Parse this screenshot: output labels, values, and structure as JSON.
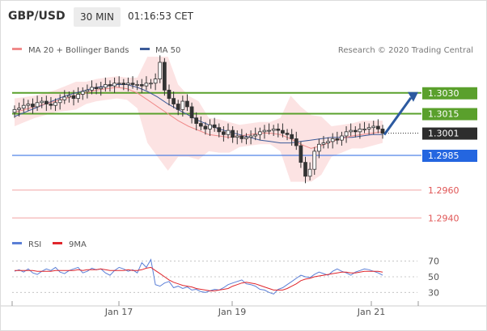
{
  "header": {
    "pair": "GBP/USD",
    "timeframe": "30 MIN",
    "time": "01:16:53 CET"
  },
  "legend_main": [
    {
      "label": "MA 20 + Bollinger Bands",
      "color": "#f08a8a"
    },
    {
      "label": "MA 50",
      "color": "#3b5a99"
    }
  ],
  "credit": "Research © 2020 Trading Central",
  "legend_osc": [
    {
      "label": "RSI",
      "color": "#5b7fd6"
    },
    {
      "label": "9MA",
      "color": "#e0262c"
    }
  ],
  "chart_data": [
    {
      "type": "candlestick",
      "x_labels": [
        "Jan 17",
        "Jan 19",
        "Jan 21"
      ],
      "ylim": [
        1.2932,
        1.3052
      ],
      "levels": [
        {
          "value": 1.303,
          "label": "1.3030",
          "color": "#5aa02c",
          "kind": "resistance"
        },
        {
          "value": 1.3015,
          "label": "1.3015",
          "color": "#5aa02c",
          "kind": "resistance"
        },
        {
          "value": 1.3001,
          "label": "1.3001",
          "color": "#2d2d2d",
          "kind": "last"
        },
        {
          "value": 1.2985,
          "label": "1.2985",
          "color": "#2466e0",
          "kind": "pivot"
        },
        {
          "value": 1.296,
          "label": "1.2960",
          "color": "#e05555",
          "kind": "support"
        },
        {
          "value": 1.294,
          "label": "1.2940",
          "color": "#e05555",
          "kind": "support"
        }
      ],
      "close_series": [
        1.3018,
        1.3019,
        1.3021,
        1.3022,
        1.302,
        1.3023,
        1.3024,
        1.3022,
        1.3021,
        1.3023,
        1.3025,
        1.3027,
        1.3028,
        1.3026,
        1.3029,
        1.3031,
        1.3032,
        1.3034,
        1.3033,
        1.3034,
        1.3036,
        1.3035,
        1.3037,
        1.3037,
        1.3036,
        1.3037,
        1.3036,
        1.3036,
        1.3035,
        1.3037,
        1.3037,
        1.304,
        1.3052,
        1.3032,
        1.3026,
        1.3022,
        1.3018,
        1.3024,
        1.302,
        1.3012,
        1.3008,
        1.3006,
        1.3004,
        1.3007,
        1.3005,
        1.3002,
        1.3,
        1.3003,
        1.2998,
        1.2999,
        1.2997,
        1.2998,
        1.2999,
        1.3,
        1.3002,
        1.3003,
        1.3003,
        1.3004,
        1.3003,
        1.3001,
        1.3,
        1.2997,
        1.2992,
        1.298,
        1.297,
        1.2975,
        1.2988,
        1.2993,
        1.2994,
        1.2995,
        1.2997,
        1.2996,
        1.2999,
        1.3002,
        1.3003,
        1.3002,
        1.3004,
        1.3004,
        1.3005,
        1.3006,
        1.3004,
        1.3001
      ],
      "ma20": [
        1.3016,
        1.3018,
        1.302,
        1.3022,
        1.3024,
        1.3026,
        1.3028,
        1.303,
        1.3032,
        1.3033,
        1.3034,
        1.3033,
        1.303,
        1.3025,
        1.302,
        1.3015,
        1.301,
        1.3006,
        1.3003,
        1.3,
        1.2999,
        1.2998,
        1.2999,
        1.3,
        1.3001,
        1.3001,
        1.3,
        1.2997,
        1.2993,
        1.299,
        1.2992,
        1.2995,
        1.2997,
        1.2999,
        1.3,
        1.3001,
        1.3002
      ],
      "ma50": [
        1.3013,
        1.3016,
        1.3019,
        1.3022,
        1.3025,
        1.3028,
        1.303,
        1.3032,
        1.3034,
        1.3035,
        1.3036,
        1.3036,
        1.3034,
        1.3031,
        1.3027,
        1.3022,
        1.3018,
        1.3014,
        1.301,
        1.3007,
        1.3004,
        1.3002,
        1.3,
        1.2998,
        1.2996,
        1.2995,
        1.2994,
        1.2994,
        1.2995,
        1.2996,
        1.2997,
        1.2998,
        1.2998,
        1.2998,
        1.2999,
        1.3,
        1.3
      ]
    },
    {
      "type": "line",
      "name": "RSI",
      "ylim": [
        20,
        80
      ],
      "y_ticks": [
        70,
        50,
        30
      ],
      "rsi": [
        57,
        59,
        56,
        60,
        55,
        53,
        57,
        60,
        58,
        62,
        56,
        54,
        58,
        60,
        62,
        55,
        57,
        61,
        59,
        60,
        55,
        52,
        58,
        62,
        60,
        57,
        59,
        55,
        68,
        62,
        72,
        40,
        38,
        42,
        44,
        36,
        38,
        35,
        37,
        33,
        34,
        31,
        30,
        32,
        34,
        33,
        36,
        40,
        42,
        44,
        46,
        41,
        40,
        38,
        34,
        33,
        30,
        28,
        34,
        36,
        40,
        44,
        48,
        52,
        50,
        49,
        53,
        56,
        54,
        52,
        57,
        60,
        57,
        55,
        52,
        56,
        58,
        60,
        59,
        57,
        55,
        52
      ],
      "ma9": [
        58,
        58,
        58,
        58,
        58,
        57,
        57,
        57,
        57,
        58,
        58,
        58,
        58,
        58,
        59,
        58,
        59,
        59,
        59,
        60,
        59,
        58,
        58,
        58,
        58,
        59,
        58,
        58,
        59,
        61,
        62,
        58,
        54,
        50,
        46,
        43,
        41,
        39,
        38,
        37,
        35,
        34,
        33,
        32,
        32,
        33,
        34,
        35,
        38,
        40,
        42,
        43,
        42,
        41,
        39,
        37,
        35,
        33,
        33,
        33,
        35,
        38,
        41,
        45,
        47,
        48,
        50,
        51,
        52,
        53,
        54,
        55,
        56,
        56,
        55,
        55,
        56,
        57,
        57,
        57,
        57,
        56
      ]
    }
  ]
}
